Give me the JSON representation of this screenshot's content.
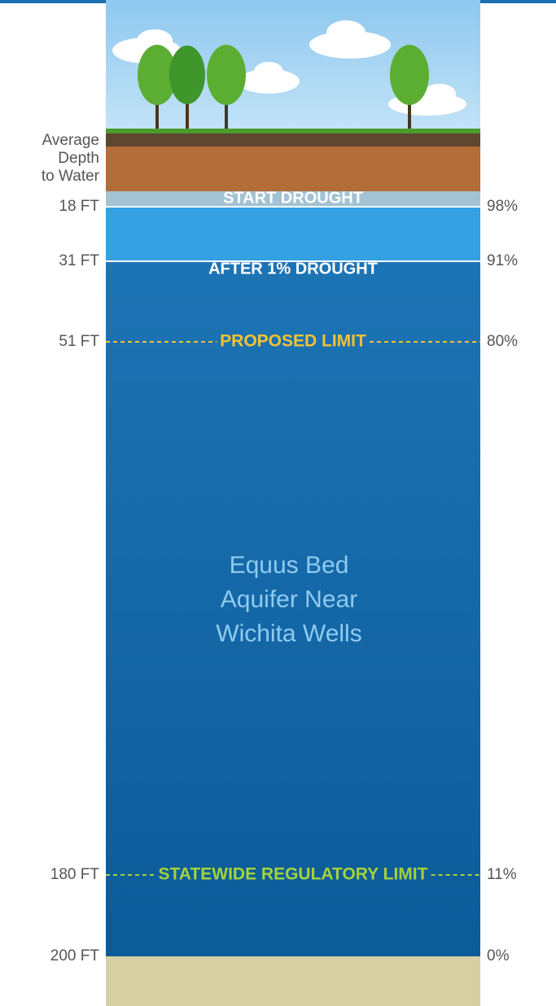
{
  "axis_title": [
    "Average",
    "Depth",
    "to Water"
  ],
  "levels": [
    {
      "depth": "18 FT",
      "percent": "98%",
      "label": "START DROUGHT"
    },
    {
      "depth": "31 FT",
      "percent": "91%",
      "label": "AFTER 1% DROUGHT"
    },
    {
      "depth": "51 FT",
      "percent": "80%",
      "label": "PROPOSED LIMIT"
    },
    {
      "depth": "180 FT",
      "percent": "11%",
      "label": "STATEWIDE REGULATORY LIMIT"
    },
    {
      "depth": "200 FT",
      "percent": "0%"
    }
  ],
  "aquifer_name": [
    "Equus Bed",
    "Aquifer Near",
    "Wichita Wells"
  ]
}
